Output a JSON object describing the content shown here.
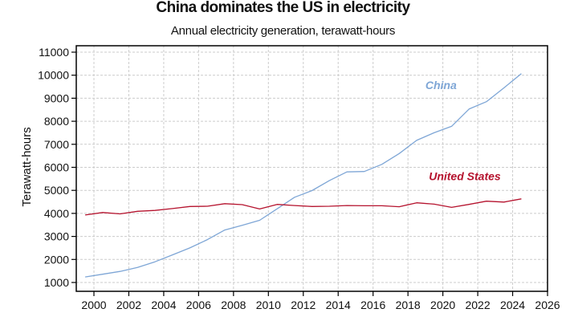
{
  "chart_data": {
    "type": "line",
    "title": "China dominates the US in electricity",
    "subtitle": "Annual electricity generation, terawatt-hours",
    "xlabel": "",
    "ylabel": "Terawatt-hours",
    "xlim": [
      1999,
      2026
    ],
    "ylim": [
      600,
      11400
    ],
    "xticks": [
      2000,
      2002,
      2004,
      2006,
      2008,
      2010,
      2012,
      2014,
      2016,
      2018,
      2020,
      2022,
      2024,
      2026
    ],
    "yticks": [
      1000,
      2000,
      3000,
      4000,
      5000,
      6000,
      7000,
      8000,
      9000,
      10000,
      11000
    ],
    "grid": true,
    "x": [
      1999.5,
      2000.5,
      2001.5,
      2002.5,
      2003.5,
      2004.5,
      2005.5,
      2006.5,
      2007.5,
      2008.5,
      2009.5,
      2010.5,
      2011.5,
      2012.5,
      2013.5,
      2014.5,
      2015.5,
      2016.5,
      2017.5,
      2018.5,
      2019.5,
      2020.5,
      2021.5,
      2022.5,
      2023.5,
      2024.5
    ],
    "series": [
      {
        "name": "China",
        "color": "#7ea6d6",
        "label_pos": [
          2019,
          9400
        ],
        "values": [
          1240,
          1360,
          1480,
          1650,
          1900,
          2200,
          2500,
          2860,
          3280,
          3480,
          3700,
          4200,
          4700,
          4990,
          5430,
          5800,
          5820,
          6130,
          6600,
          7170,
          7500,
          7780,
          8530,
          8850,
          9450,
          10070
        ]
      },
      {
        "name": "United States",
        "color": "#b5132e",
        "label_pos": [
          2019.2,
          5450
        ],
        "values": [
          3930,
          4040,
          3980,
          4090,
          4130,
          4210,
          4300,
          4310,
          4420,
          4380,
          4190,
          4390,
          4340,
          4300,
          4310,
          4340,
          4330,
          4330,
          4290,
          4460,
          4400,
          4260,
          4390,
          4530,
          4490,
          4630
        ]
      }
    ]
  }
}
